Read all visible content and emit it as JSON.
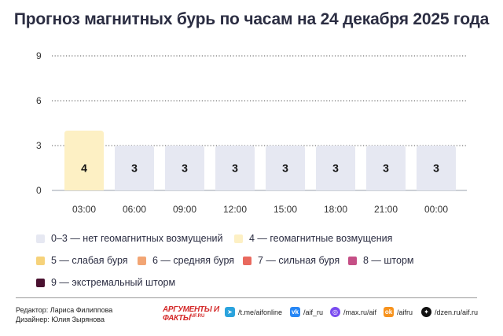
{
  "title": "Прогноз магнитных бурь по часам на 24 декабря 2025 года",
  "colors": {
    "level_0_3": "#e6e8f2",
    "level_4": "#fdf0c4",
    "level_5": "#f6d27a",
    "level_6": "#f2a574",
    "level_7": "#e9695e",
    "level_8": "#c54f86",
    "level_9": "#4a1130"
  },
  "chart_data": {
    "type": "bar",
    "title": "Прогноз магнитных бурь по часам на 24 декабря 2025 года",
    "categories": [
      "03:00",
      "06:00",
      "09:00",
      "12:00",
      "15:00",
      "18:00",
      "21:00",
      "00:00"
    ],
    "values": [
      4,
      3,
      3,
      3,
      3,
      3,
      3,
      3
    ],
    "value_labels": [
      "4",
      "3",
      "3",
      "3",
      "3",
      "3",
      "3",
      "3"
    ],
    "bar_colors": [
      "#fdf0c4",
      "#e6e8f2",
      "#e6e8f2",
      "#e6e8f2",
      "#e6e8f2",
      "#e6e8f2",
      "#e6e8f2",
      "#e6e8f2"
    ],
    "yticks": [
      0,
      3,
      6,
      9
    ],
    "ytick_labels": [
      "0",
      "3",
      "6",
      "9"
    ],
    "ylim": [
      0,
      9
    ],
    "grid": "dotted",
    "xlabel": "",
    "ylabel": "",
    "legend_position": "bottom"
  },
  "legend": [
    {
      "label": "0–3 — нет геомагнитных возмущений",
      "color": "#e6e8f2"
    },
    {
      "label": "4 — геомагнитные возмущения",
      "color": "#fdf0c4"
    },
    {
      "label": "5 — слабая буря",
      "color": "#f6d27a"
    },
    {
      "label": "6 — средняя буря",
      "color": "#f2a574"
    },
    {
      "label": "7 — сильная буря",
      "color": "#e9695e"
    },
    {
      "label": "8 — шторм",
      "color": "#c54f86"
    },
    {
      "label": "9 — экстремальный шторм",
      "color": "#4a1130"
    }
  ],
  "footer": {
    "editor": "Редактор: Лариса Филиппова",
    "designer": "Дизайнер: Юлия Зырянова",
    "logo_text": "АРГУМЕНТЫ И ФАКТЫ",
    "logo_sub": "AIF.RU",
    "socials": [
      {
        "icon": "telegram-icon",
        "text": "/t.me/aifonline",
        "color": "#2aa3dd",
        "glyph": "➤"
      },
      {
        "icon": "vk-icon",
        "text": "/aif_ru",
        "color": "#2787f5",
        "glyph": "vk"
      },
      {
        "icon": "max-icon",
        "text": "/max.ru/aif",
        "color": "#7a4cf0",
        "glyph": "◎"
      },
      {
        "icon": "ok-icon",
        "text": "/aifru",
        "color": "#f7931e",
        "glyph": "ok"
      },
      {
        "icon": "dzen-icon",
        "text": "/dzen.ru/aif.ru",
        "color": "#111111",
        "glyph": "✦"
      }
    ]
  }
}
